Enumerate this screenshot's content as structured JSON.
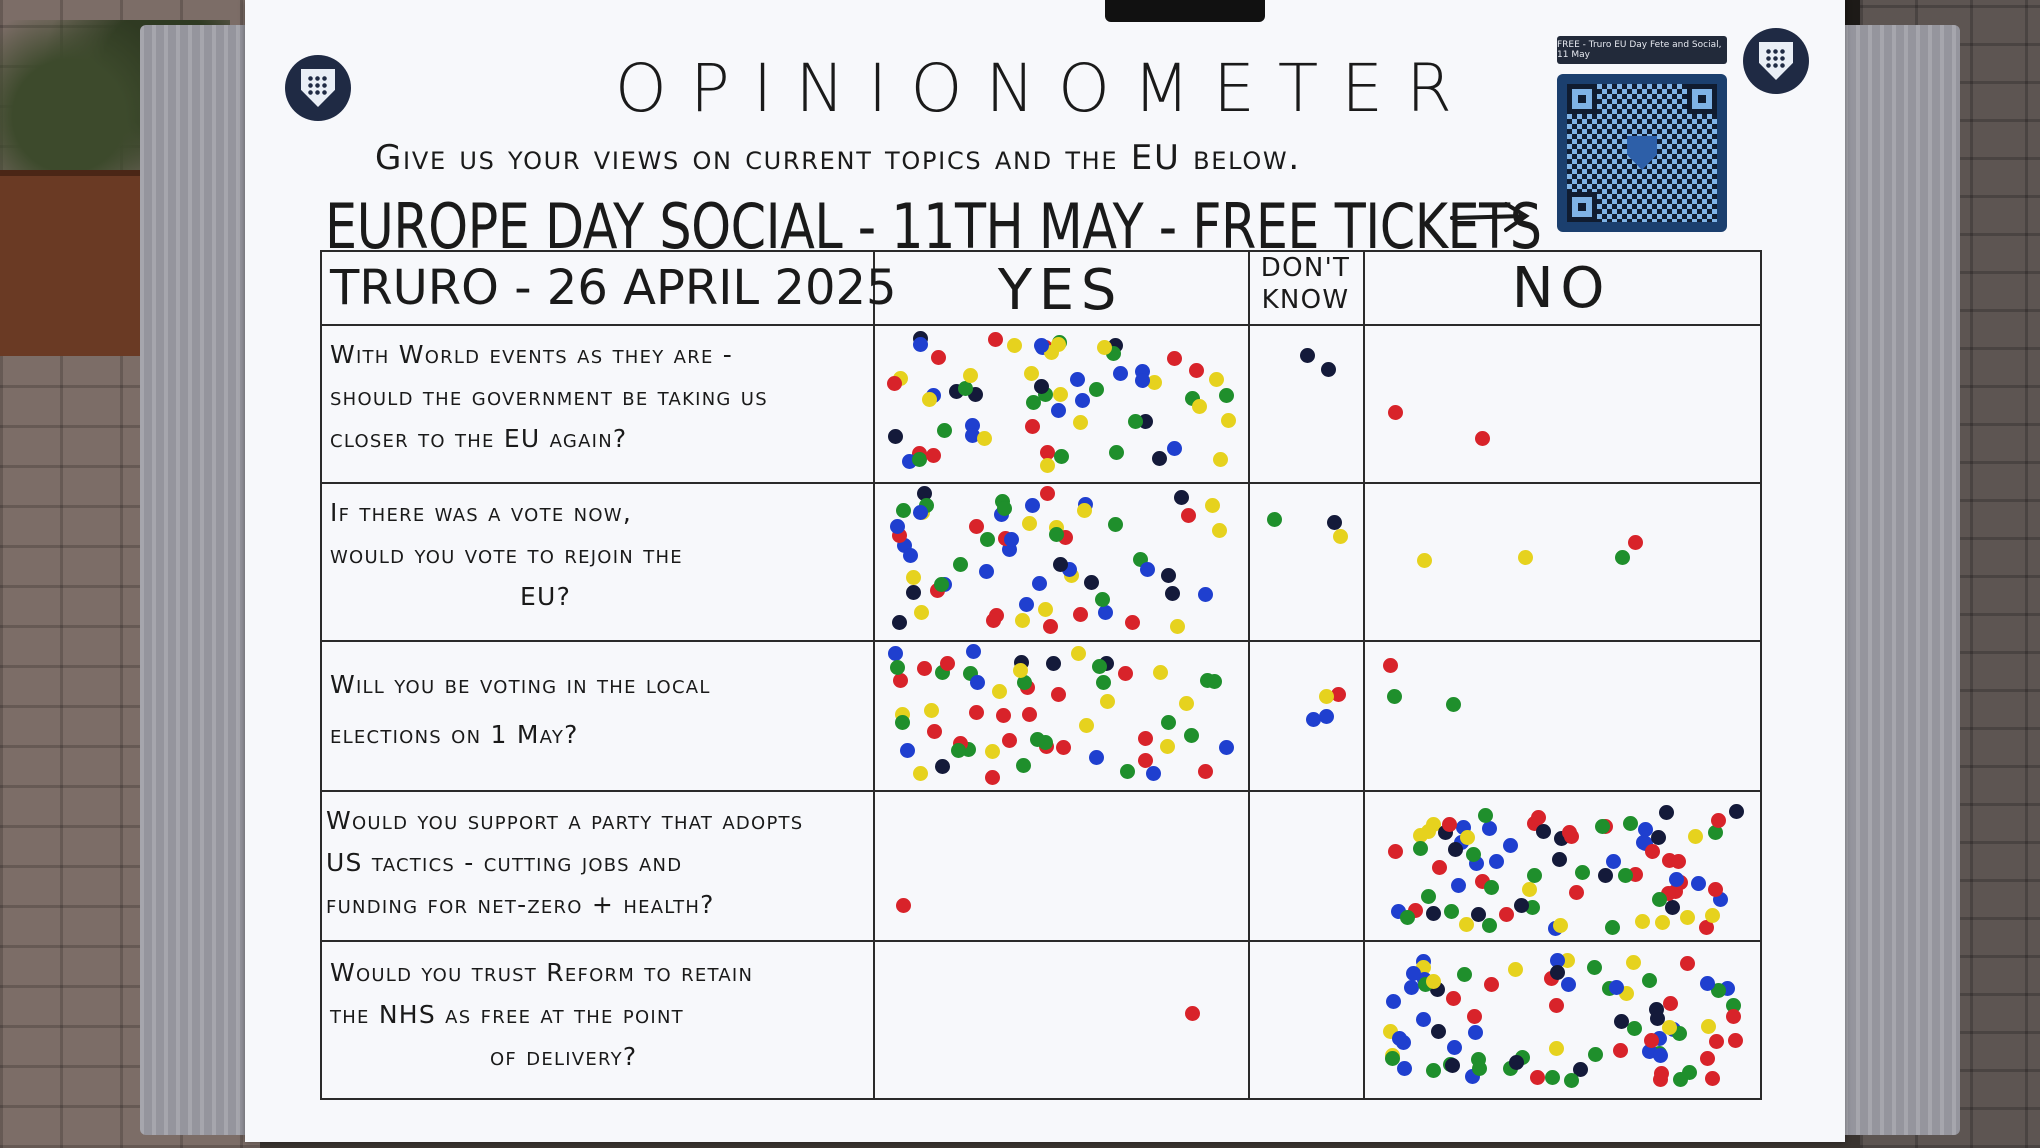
{
  "poster": {
    "title": "OPINIONOMETER",
    "subtitle": "Give us your views on current topics and the EU below.",
    "social_banner": "EUROPE DAY SOCIAL - 11TH MAY - FREE TICKETS",
    "qr_caption": "FREE - Truro EU Day Fete and Social, 11 May",
    "location_date": "TRURO - 26 APRIL 2025",
    "column_yes": "YES",
    "column_dont_know_1": "DON'T",
    "column_dont_know_2": "KNOW",
    "column_no": "NO"
  },
  "questions": [
    {
      "line1": "With World events as they are -",
      "line2": "should the government be taking us",
      "line3": "closer to the EU again?"
    },
    {
      "line1": "If there was a vote now,",
      "line2": "would you vote to rejoin the",
      "line3": "EU?"
    },
    {
      "line1": "Will you be voting in the local",
      "line2": "elections on 1 May?",
      "line3": ""
    },
    {
      "line1": "Would you support a party that adopts",
      "line2": "US tactics - cutting jobs and",
      "line3": "funding for net-zero + health?"
    },
    {
      "line1": "Would you trust Reform to retain",
      "line2": "the NHS as free at the point",
      "line3": "of delivery?"
    }
  ],
  "colors": {
    "red": "#d8232a",
    "blue": "#1f3fcf",
    "green": "#1f8f2c",
    "yellow": "#e6d21e",
    "navy": "#141a3a",
    "orange": "#f08a1e"
  }
}
